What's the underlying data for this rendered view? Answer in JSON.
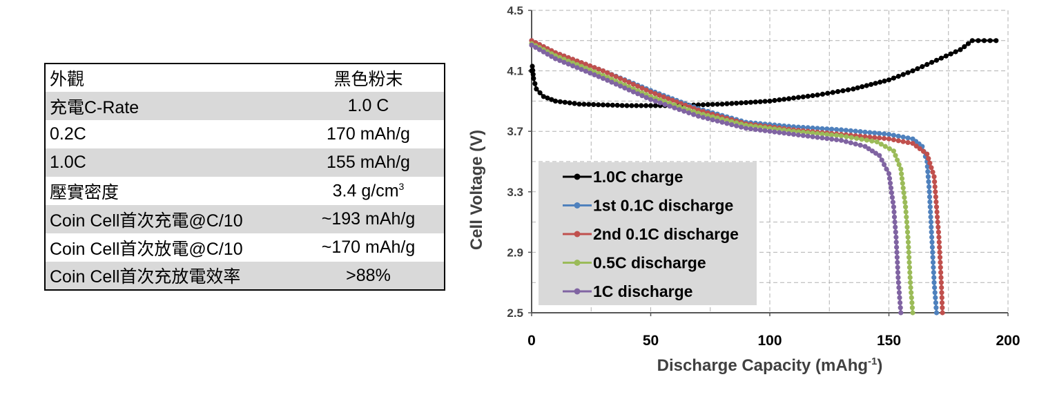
{
  "table": {
    "rows": [
      {
        "label": "外觀",
        "value": "黑色粉末"
      },
      {
        "label": "充電C-Rate",
        "value": "1.0 C"
      },
      {
        "label": "0.2C",
        "value": "170 mAh/g"
      },
      {
        "label": "1.0C",
        "value": "155 mAh/g"
      },
      {
        "label": "壓實密度",
        "value": "3.4 g/cm",
        "value_sup": "3"
      },
      {
        "label": "Coin Cell首次充電@C/10",
        "value": "~193 mAh/g"
      },
      {
        "label": "Coin Cell首次放電@C/10",
        "value": "~170 mAh/g"
      },
      {
        "label": "Coin Cell首次充放電效率",
        "value": ">88%"
      }
    ]
  },
  "chart_data": {
    "type": "line",
    "title": "",
    "xlabel": "Discharge Capacity (mAhg",
    "xlabel_sup": "-1",
    "xlabel_end": ")",
    "ylabel": "Cell Voltage (V)",
    "xlim": [
      0,
      200
    ],
    "ylim": [
      2.5,
      4.5
    ],
    "x_ticks": [
      0,
      50,
      100,
      150,
      200
    ],
    "y_ticks": [
      "2.5",
      "2.9",
      "3.3",
      "3.7",
      "4.1",
      "4.5"
    ],
    "grid": true,
    "legend_position": "lower-left",
    "series": [
      {
        "name": "1.0C charge",
        "color": "#000000",
        "points": [
          [
            0,
            4.1
          ],
          [
            0.3,
            4.13
          ],
          [
            0.8,
            4.05
          ],
          [
            2,
            3.98
          ],
          [
            5,
            3.93
          ],
          [
            10,
            3.9
          ],
          [
            20,
            3.88
          ],
          [
            40,
            3.87
          ],
          [
            60,
            3.87
          ],
          [
            80,
            3.88
          ],
          [
            100,
            3.9
          ],
          [
            120,
            3.94
          ],
          [
            135,
            3.98
          ],
          [
            150,
            4.04
          ],
          [
            160,
            4.1
          ],
          [
            170,
            4.17
          ],
          [
            180,
            4.24
          ],
          [
            185,
            4.3
          ],
          [
            190,
            4.3
          ],
          [
            195,
            4.3
          ]
        ]
      },
      {
        "name": "1st 0.1C discharge",
        "color": "#4f81bd",
        "points": [
          [
            0,
            4.3
          ],
          [
            10,
            4.22
          ],
          [
            30,
            4.1
          ],
          [
            50,
            3.97
          ],
          [
            70,
            3.85
          ],
          [
            90,
            3.76
          ],
          [
            110,
            3.73
          ],
          [
            130,
            3.71
          ],
          [
            150,
            3.68
          ],
          [
            160,
            3.65
          ],
          [
            164,
            3.6
          ],
          [
            166,
            3.5
          ],
          [
            167,
            3.3
          ],
          [
            168,
            3.0
          ],
          [
            169,
            2.7
          ],
          [
            170,
            2.5
          ]
        ]
      },
      {
        "name": "2nd 0.1C discharge",
        "color": "#c0504d",
        "points": [
          [
            0,
            4.3
          ],
          [
            10,
            4.22
          ],
          [
            30,
            4.1
          ],
          [
            50,
            3.96
          ],
          [
            70,
            3.84
          ],
          [
            90,
            3.75
          ],
          [
            110,
            3.71
          ],
          [
            130,
            3.68
          ],
          [
            150,
            3.65
          ],
          [
            160,
            3.62
          ],
          [
            166,
            3.55
          ],
          [
            169,
            3.4
          ],
          [
            170,
            3.2
          ],
          [
            171,
            3.0
          ],
          [
            172,
            2.7
          ],
          [
            172.5,
            2.5
          ]
        ]
      },
      {
        "name": "0.5C discharge",
        "color": "#9bbb59",
        "points": [
          [
            0,
            4.28
          ],
          [
            10,
            4.2
          ],
          [
            30,
            4.07
          ],
          [
            50,
            3.93
          ],
          [
            70,
            3.82
          ],
          [
            90,
            3.74
          ],
          [
            110,
            3.7
          ],
          [
            130,
            3.67
          ],
          [
            145,
            3.63
          ],
          [
            152,
            3.57
          ],
          [
            155,
            3.45
          ],
          [
            157,
            3.2
          ],
          [
            158,
            3.0
          ],
          [
            159,
            2.7
          ],
          [
            160,
            2.5
          ]
        ]
      },
      {
        "name": "1C discharge",
        "color": "#8064a2",
        "points": [
          [
            0,
            4.27
          ],
          [
            10,
            4.18
          ],
          [
            30,
            4.05
          ],
          [
            50,
            3.91
          ],
          [
            70,
            3.8
          ],
          [
            90,
            3.72
          ],
          [
            110,
            3.68
          ],
          [
            130,
            3.64
          ],
          [
            140,
            3.6
          ],
          [
            146,
            3.54
          ],
          [
            150,
            3.42
          ],
          [
            152,
            3.2
          ],
          [
            153,
            3.0
          ],
          [
            154,
            2.7
          ],
          [
            155,
            2.5
          ]
        ]
      }
    ]
  }
}
